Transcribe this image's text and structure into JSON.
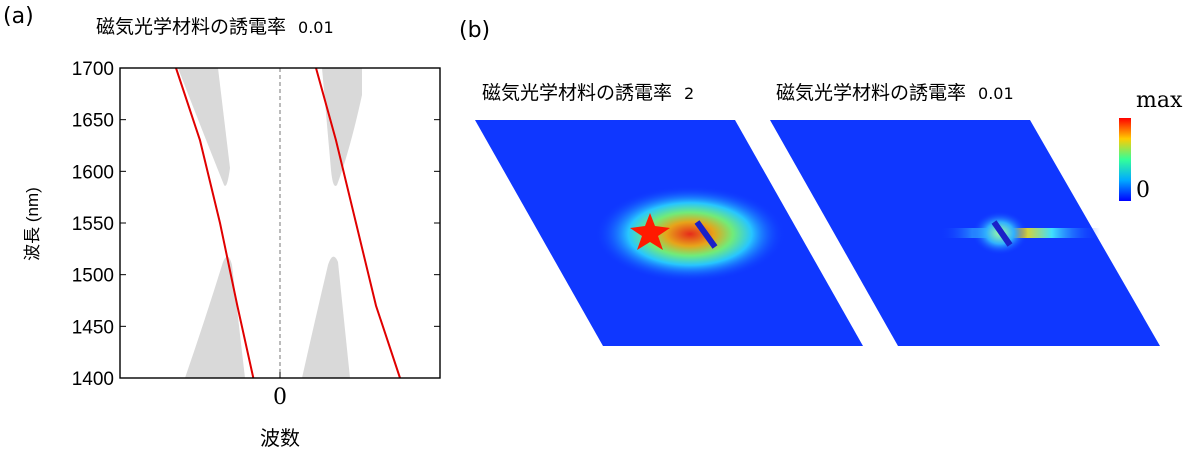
{
  "panel_a": {
    "label": "(a)",
    "title": "磁気光学材料の誘電率",
    "title_value": "0.01"
  },
  "panel_b": {
    "label": "(b)",
    "left_title": "磁気光学材料の誘電率",
    "left_value": "2",
    "right_title": "磁気光学材料の誘電率",
    "right_value": "0.01",
    "colorbar": {
      "max_label": "max",
      "min_label": "0"
    }
  },
  "chart_data": {
    "type": "line",
    "title": "磁気光学材料の誘電率 0.01",
    "xlabel": "波数",
    "ylabel": "波長 (nm)",
    "ylim": [
      1400,
      1700
    ],
    "y_ticks": [
      1400,
      1450,
      1500,
      1550,
      1600,
      1650,
      1700
    ],
    "x_ticks": [
      "0"
    ],
    "series": [
      {
        "color": "#e00000",
        "x": [
          -0.78,
          -0.6,
          -0.45,
          -0.32,
          -0.2
        ],
        "y": [
          1700,
          1630,
          1550,
          1470,
          1400
        ]
      },
      {
        "color": "#e00000",
        "x": [
          0.27,
          0.42,
          0.57,
          0.72,
          0.9
        ],
        "y": [
          1700,
          1630,
          1550,
          1470,
          1400
        ]
      }
    ],
    "colors": {
      "line": "#e00000",
      "band": "#d9d9d9",
      "field_bg": "#0f37ff"
    }
  }
}
